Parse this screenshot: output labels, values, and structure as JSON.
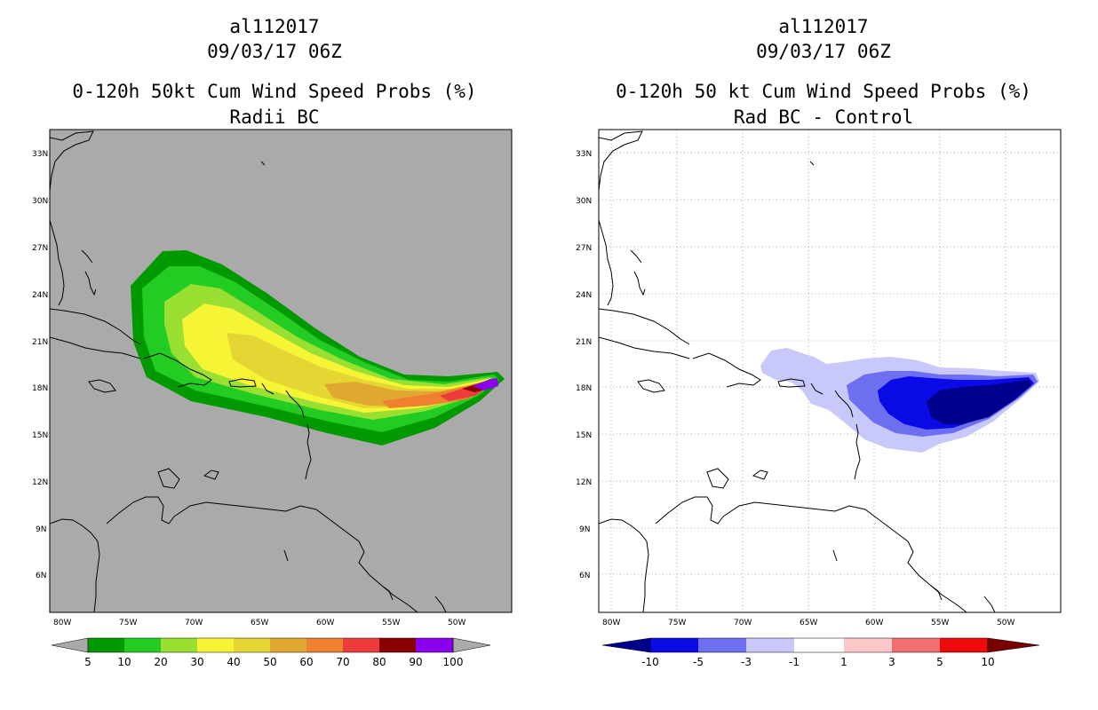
{
  "left": {
    "storm_id": "al112017",
    "datetime": "09/03/17 06Z",
    "title": "0-120h 50kt Cum Wind Speed Probs (%)",
    "subtitle": "Radii BC",
    "lat_ticks": [
      "33N",
      "30N",
      "27N",
      "24N",
      "21N",
      "18N",
      "15N",
      "12N",
      "9N",
      "6N"
    ],
    "lon_ticks": [
      "80W",
      "75W",
      "70W",
      "65W",
      "60W",
      "55W",
      "50W"
    ],
    "colorbar": {
      "labels": [
        "5",
        "10",
        "20",
        "30",
        "40",
        "50",
        "60",
        "70",
        "80",
        "90",
        "100"
      ],
      "colors": [
        "#009900",
        "#22cc22",
        "#99e033",
        "#f5f536",
        "#e6d633",
        "#e0a830",
        "#ee8030",
        "#ee3c3c",
        "#8a0000",
        "#8a00ee"
      ]
    },
    "background": "#aaaaaa"
  },
  "right": {
    "storm_id": "al112017",
    "datetime": "09/03/17 06Z",
    "title": "0-120h 50 kt Cum Wind Speed Probs (%)",
    "subtitle": "Rad BC - Control",
    "lat_ticks": [
      "33N",
      "30N",
      "27N",
      "24N",
      "21N",
      "18N",
      "15N",
      "12N",
      "9N",
      "6N"
    ],
    "lon_ticks": [
      "80W",
      "75W",
      "70W",
      "65W",
      "60W",
      "55W",
      "50W"
    ],
    "colorbar": {
      "labels": [
        "-10",
        "-5",
        "-3",
        "-1",
        "1",
        "3",
        "5",
        "10"
      ],
      "colors": [
        "#00008c",
        "#0a0ae6",
        "#6e6ef0",
        "#c8c8fa",
        "#ffffff",
        "#ffc8c8",
        "#f07070",
        "#ee0a0a",
        "#7a0000"
      ]
    },
    "background": "#ffffff"
  }
}
